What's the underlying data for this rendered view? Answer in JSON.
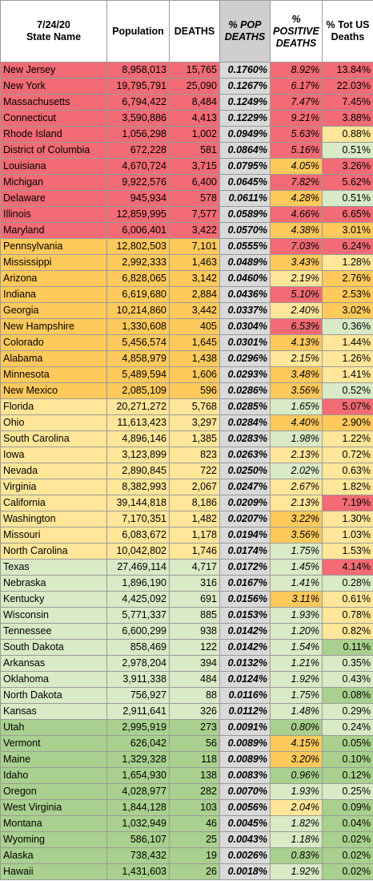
{
  "header": {
    "date": "7/24/20",
    "state_name": "State Name",
    "population": "Population",
    "deaths": "DEATHS",
    "pct_pop_deaths": "% POP DEATHS",
    "pct_positive_deaths": "% POSITIVE DEATHS",
    "pct_tot_us_deaths": "% Tot US Deaths"
  },
  "colors": {
    "red": "#f26b75",
    "orange": "#ffc95c",
    "yellow": "#ffe699",
    "light_green": "#d9eac6",
    "green": "#a9d08e",
    "gray_header": "#d0cece",
    "gray_column": "#d9d9d9"
  },
  "chart_data": {
    "type": "table",
    "columns": [
      "State Name",
      "Population",
      "DEATHS",
      "% POP DEATHS",
      "% POSITIVE DEATHS",
      "% Tot US Deaths"
    ],
    "rows": [
      {
        "state": "New Jersey",
        "population": "8,958,013",
        "deaths": "15,765",
        "pop_deaths": "0.1760%",
        "positive_deaths": "8.92%",
        "tot_us": "13.84%",
        "row_color": "red",
        "pos_color": "red",
        "tot_color": "red"
      },
      {
        "state": "New York",
        "population": "19,795,791",
        "deaths": "25,090",
        "pop_deaths": "0.1267%",
        "positive_deaths": "6.17%",
        "tot_us": "22.03%",
        "row_color": "red",
        "pos_color": "red",
        "tot_color": "red"
      },
      {
        "state": "Massachusetts",
        "population": "6,794,422",
        "deaths": "8,484",
        "pop_deaths": "0.1249%",
        "positive_deaths": "7.47%",
        "tot_us": "7.45%",
        "row_color": "red",
        "pos_color": "red",
        "tot_color": "red"
      },
      {
        "state": "Connecticut",
        "population": "3,590,886",
        "deaths": "4,413",
        "pop_deaths": "0.1229%",
        "positive_deaths": "9.21%",
        "tot_us": "3.88%",
        "row_color": "red",
        "pos_color": "red",
        "tot_color": "red"
      },
      {
        "state": "Rhode Island",
        "population": "1,056,298",
        "deaths": "1,002",
        "pop_deaths": "0.0949%",
        "positive_deaths": "5.63%",
        "tot_us": "0.88%",
        "row_color": "red",
        "pos_color": "red",
        "tot_color": "yellow"
      },
      {
        "state": "District of Columbia",
        "population": "672,228",
        "deaths": "581",
        "pop_deaths": "0.0864%",
        "positive_deaths": "5.16%",
        "tot_us": "0.51%",
        "row_color": "red",
        "pos_color": "red",
        "tot_color": "light_green"
      },
      {
        "state": "Louisiana",
        "population": "4,670,724",
        "deaths": "3,715",
        "pop_deaths": "0.0795%",
        "positive_deaths": "4.05%",
        "tot_us": "3.26%",
        "row_color": "red",
        "pos_color": "orange",
        "tot_color": "red"
      },
      {
        "state": "Michigan",
        "population": "9,922,576",
        "deaths": "6,400",
        "pop_deaths": "0.0645%",
        "positive_deaths": "7.82%",
        "tot_us": "5.62%",
        "row_color": "red",
        "pos_color": "red",
        "tot_color": "red"
      },
      {
        "state": "Delaware",
        "population": "945,934",
        "deaths": "578",
        "pop_deaths": "0.0611%",
        "positive_deaths": "4.28%",
        "tot_us": "0.51%",
        "row_color": "red",
        "pos_color": "orange",
        "tot_color": "light_green"
      },
      {
        "state": "Illinois",
        "population": "12,859,995",
        "deaths": "7,577",
        "pop_deaths": "0.0589%",
        "positive_deaths": "4.66%",
        "tot_us": "6.65%",
        "row_color": "red",
        "pos_color": "red",
        "tot_color": "red"
      },
      {
        "state": "Maryland",
        "population": "6,006,401",
        "deaths": "3,422",
        "pop_deaths": "0.0570%",
        "positive_deaths": "4.38%",
        "tot_us": "3.01%",
        "row_color": "red",
        "pos_color": "orange",
        "tot_color": "orange"
      },
      {
        "state": "Pennsylvania",
        "population": "12,802,503",
        "deaths": "7,101",
        "pop_deaths": "0.0555%",
        "positive_deaths": "7.03%",
        "tot_us": "6.24%",
        "row_color": "orange",
        "pos_color": "red",
        "tot_color": "red"
      },
      {
        "state": "Mississippi",
        "population": "2,992,333",
        "deaths": "1,463",
        "pop_deaths": "0.0489%",
        "positive_deaths": "3.43%",
        "tot_us": "1.28%",
        "row_color": "orange",
        "pos_color": "orange",
        "tot_color": "yellow"
      },
      {
        "state": "Arizona",
        "population": "6,828,065",
        "deaths": "3,142",
        "pop_deaths": "0.0460%",
        "positive_deaths": "2.19%",
        "tot_us": "2.76%",
        "row_color": "orange",
        "pos_color": "yellow",
        "tot_color": "orange"
      },
      {
        "state": "Indiana",
        "population": "6,619,680",
        "deaths": "2,884",
        "pop_deaths": "0.0436%",
        "positive_deaths": "5.10%",
        "tot_us": "2.53%",
        "row_color": "orange",
        "pos_color": "red",
        "tot_color": "orange"
      },
      {
        "state": "Georgia",
        "population": "10,214,860",
        "deaths": "3,442",
        "pop_deaths": "0.0337%",
        "positive_deaths": "2.40%",
        "tot_us": "3.02%",
        "row_color": "orange",
        "pos_color": "yellow",
        "tot_color": "orange"
      },
      {
        "state": "New Hampshire",
        "population": "1,330,608",
        "deaths": "405",
        "pop_deaths": "0.0304%",
        "positive_deaths": "6.53%",
        "tot_us": "0.36%",
        "row_color": "orange",
        "pos_color": "red",
        "tot_color": "light_green"
      },
      {
        "state": "Colorado",
        "population": "5,456,574",
        "deaths": "1,645",
        "pop_deaths": "0.0301%",
        "positive_deaths": "4.13%",
        "tot_us": "1.44%",
        "row_color": "orange",
        "pos_color": "orange",
        "tot_color": "yellow"
      },
      {
        "state": "Alabama",
        "population": "4,858,979",
        "deaths": "1,438",
        "pop_deaths": "0.0296%",
        "positive_deaths": "2.15%",
        "tot_us": "1.26%",
        "row_color": "orange",
        "pos_color": "yellow",
        "tot_color": "yellow"
      },
      {
        "state": "Minnesota",
        "population": "5,489,594",
        "deaths": "1,606",
        "pop_deaths": "0.0293%",
        "positive_deaths": "3.48%",
        "tot_us": "1.41%",
        "row_color": "orange",
        "pos_color": "orange",
        "tot_color": "yellow"
      },
      {
        "state": "New Mexico",
        "population": "2,085,109",
        "deaths": "596",
        "pop_deaths": "0.0286%",
        "positive_deaths": "3.56%",
        "tot_us": "0.52%",
        "row_color": "orange",
        "pos_color": "orange",
        "tot_color": "light_green"
      },
      {
        "state": "Florida",
        "population": "20,271,272",
        "deaths": "5,768",
        "pop_deaths": "0.0285%",
        "positive_deaths": "1.65%",
        "tot_us": "5.07%",
        "row_color": "yellow",
        "pos_color": "light_green",
        "tot_color": "red"
      },
      {
        "state": "Ohio",
        "population": "11,613,423",
        "deaths": "3,297",
        "pop_deaths": "0.0284%",
        "positive_deaths": "4.40%",
        "tot_us": "2.90%",
        "row_color": "yellow",
        "pos_color": "orange",
        "tot_color": "orange"
      },
      {
        "state": "South Carolina",
        "population": "4,896,146",
        "deaths": "1,385",
        "pop_deaths": "0.0283%",
        "positive_deaths": "1.98%",
        "tot_us": "1.22%",
        "row_color": "yellow",
        "pos_color": "light_green",
        "tot_color": "yellow"
      },
      {
        "state": "Iowa",
        "population": "3,123,899",
        "deaths": "823",
        "pop_deaths": "0.0263%",
        "positive_deaths": "2.13%",
        "tot_us": "0.72%",
        "row_color": "yellow",
        "pos_color": "yellow",
        "tot_color": "yellow"
      },
      {
        "state": "Nevada",
        "population": "2,890,845",
        "deaths": "722",
        "pop_deaths": "0.0250%",
        "positive_deaths": "2.02%",
        "tot_us": "0.63%",
        "row_color": "yellow",
        "pos_color": "light_green",
        "tot_color": "yellow"
      },
      {
        "state": "Virginia",
        "population": "8,382,993",
        "deaths": "2,067",
        "pop_deaths": "0.0247%",
        "positive_deaths": "2.67%",
        "tot_us": "1.82%",
        "row_color": "yellow",
        "pos_color": "yellow",
        "tot_color": "yellow"
      },
      {
        "state": "California",
        "population": "39,144,818",
        "deaths": "8,186",
        "pop_deaths": "0.0209%",
        "positive_deaths": "2.13%",
        "tot_us": "7.19%",
        "row_color": "yellow",
        "pos_color": "yellow",
        "tot_color": "red"
      },
      {
        "state": "Washington",
        "population": "7,170,351",
        "deaths": "1,482",
        "pop_deaths": "0.0207%",
        "positive_deaths": "3.22%",
        "tot_us": "1.30%",
        "row_color": "yellow",
        "pos_color": "orange",
        "tot_color": "yellow"
      },
      {
        "state": "Missouri",
        "population": "6,083,672",
        "deaths": "1,178",
        "pop_deaths": "0.0194%",
        "positive_deaths": "3.56%",
        "tot_us": "1.03%",
        "row_color": "yellow",
        "pos_color": "orange",
        "tot_color": "yellow"
      },
      {
        "state": "North Carolina",
        "population": "10,042,802",
        "deaths": "1,746",
        "pop_deaths": "0.0174%",
        "positive_deaths": "1.75%",
        "tot_us": "1.53%",
        "row_color": "yellow",
        "pos_color": "light_green",
        "tot_color": "yellow"
      },
      {
        "state": "Texas",
        "population": "27,469,114",
        "deaths": "4,717",
        "pop_deaths": "0.0172%",
        "positive_deaths": "1.45%",
        "tot_us": "4.14%",
        "row_color": "light_green",
        "pos_color": "light_green",
        "tot_color": "red"
      },
      {
        "state": "Nebraska",
        "population": "1,896,190",
        "deaths": "316",
        "pop_deaths": "0.0167%",
        "positive_deaths": "1.41%",
        "tot_us": "0.28%",
        "row_color": "light_green",
        "pos_color": "light_green",
        "tot_color": "light_green"
      },
      {
        "state": "Kentucky",
        "population": "4,425,092",
        "deaths": "691",
        "pop_deaths": "0.0156%",
        "positive_deaths": "3.11%",
        "tot_us": "0.61%",
        "row_color": "light_green",
        "pos_color": "orange",
        "tot_color": "yellow"
      },
      {
        "state": "Wisconsin",
        "population": "5,771,337",
        "deaths": "885",
        "pop_deaths": "0.0153%",
        "positive_deaths": "1.93%",
        "tot_us": "0.78%",
        "row_color": "light_green",
        "pos_color": "light_green",
        "tot_color": "yellow"
      },
      {
        "state": "Tennessee",
        "population": "6,600,299",
        "deaths": "938",
        "pop_deaths": "0.0142%",
        "positive_deaths": "1.20%",
        "tot_us": "0.82%",
        "row_color": "light_green",
        "pos_color": "light_green",
        "tot_color": "yellow"
      },
      {
        "state": "South Dakota",
        "population": "858,469",
        "deaths": "122",
        "pop_deaths": "0.0142%",
        "positive_deaths": "1.54%",
        "tot_us": "0.11%",
        "row_color": "light_green",
        "pos_color": "light_green",
        "tot_color": "green"
      },
      {
        "state": "Arkansas",
        "population": "2,978,204",
        "deaths": "394",
        "pop_deaths": "0.0132%",
        "positive_deaths": "1.21%",
        "tot_us": "0.35%",
        "row_color": "light_green",
        "pos_color": "light_green",
        "tot_color": "light_green"
      },
      {
        "state": "Oklahoma",
        "population": "3,911,338",
        "deaths": "484",
        "pop_deaths": "0.0124%",
        "positive_deaths": "1.92%",
        "tot_us": "0.43%",
        "row_color": "light_green",
        "pos_color": "light_green",
        "tot_color": "light_green"
      },
      {
        "state": "North Dakota",
        "population": "756,927",
        "deaths": "88",
        "pop_deaths": "0.0116%",
        "positive_deaths": "1.75%",
        "tot_us": "0.08%",
        "row_color": "light_green",
        "pos_color": "light_green",
        "tot_color": "green"
      },
      {
        "state": "Kansas",
        "population": "2,911,641",
        "deaths": "326",
        "pop_deaths": "0.0112%",
        "positive_deaths": "1.48%",
        "tot_us": "0.29%",
        "row_color": "light_green",
        "pos_color": "light_green",
        "tot_color": "light_green"
      },
      {
        "state": "Utah",
        "population": "2,995,919",
        "deaths": "273",
        "pop_deaths": "0.0091%",
        "positive_deaths": "0.80%",
        "tot_us": "0.24%",
        "row_color": "green",
        "pos_color": "green",
        "tot_color": "light_green"
      },
      {
        "state": "Vermont",
        "population": "626,042",
        "deaths": "56",
        "pop_deaths": "0.0089%",
        "positive_deaths": "4.15%",
        "tot_us": "0.05%",
        "row_color": "green",
        "pos_color": "orange",
        "tot_color": "green"
      },
      {
        "state": "Maine",
        "population": "1,329,328",
        "deaths": "118",
        "pop_deaths": "0.0089%",
        "positive_deaths": "3.20%",
        "tot_us": "0.10%",
        "row_color": "green",
        "pos_color": "orange",
        "tot_color": "green"
      },
      {
        "state": "Idaho",
        "population": "1,654,930",
        "deaths": "138",
        "pop_deaths": "0.0083%",
        "positive_deaths": "0.96%",
        "tot_us": "0.12%",
        "row_color": "green",
        "pos_color": "green",
        "tot_color": "green"
      },
      {
        "state": "Oregon",
        "population": "4,028,977",
        "deaths": "282",
        "pop_deaths": "0.0070%",
        "positive_deaths": "1.93%",
        "tot_us": "0.25%",
        "row_color": "green",
        "pos_color": "light_green",
        "tot_color": "light_green"
      },
      {
        "state": "West Virginia",
        "population": "1,844,128",
        "deaths": "103",
        "pop_deaths": "0.0056%",
        "positive_deaths": "2.04%",
        "tot_us": "0.09%",
        "row_color": "green",
        "pos_color": "yellow",
        "tot_color": "green"
      },
      {
        "state": "Montana",
        "population": "1,032,949",
        "deaths": "46",
        "pop_deaths": "0.0045%",
        "positive_deaths": "1.82%",
        "tot_us": "0.04%",
        "row_color": "green",
        "pos_color": "light_green",
        "tot_color": "green"
      },
      {
        "state": "Wyoming",
        "population": "586,107",
        "deaths": "25",
        "pop_deaths": "0.0043%",
        "positive_deaths": "1.18%",
        "tot_us": "0.02%",
        "row_color": "green",
        "pos_color": "light_green",
        "tot_color": "green"
      },
      {
        "state": "Alaska",
        "population": "738,432",
        "deaths": "19",
        "pop_deaths": "0.0026%",
        "positive_deaths": "0.83%",
        "tot_us": "0.02%",
        "row_color": "green",
        "pos_color": "green",
        "tot_color": "green"
      },
      {
        "state": "Hawaii",
        "population": "1,431,603",
        "deaths": "26",
        "pop_deaths": "0.0018%",
        "positive_deaths": "1.92%",
        "tot_us": "0.02%",
        "row_color": "green",
        "pos_color": "light_green",
        "tot_color": "green"
      }
    ]
  }
}
